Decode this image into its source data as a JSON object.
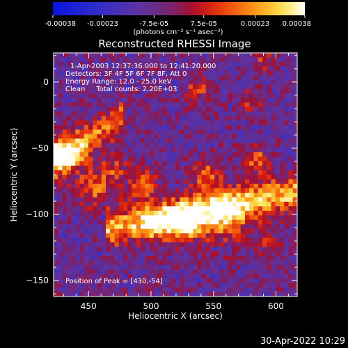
{
  "chart_data": {
    "type": "heatmap",
    "title": "Reconstructed RHESSI Image",
    "xlabel": "Heliocentric X (arcsec)",
    "ylabel": "Heliocentric Y (arcsec)",
    "xlim": [
      422,
      617
    ],
    "ylim": [
      -162,
      22
    ],
    "x_ticks": [
      450,
      500,
      550,
      600
    ],
    "y_ticks": [
      0,
      -50,
      -100,
      -150
    ],
    "colorbar": {
      "range": [
        -0.00038,
        0.00038
      ],
      "tick_values": [
        -0.00038,
        -0.00023,
        -7.5e-05,
        7.5e-05,
        0.00023,
        0.00038
      ],
      "tick_labels": [
        "-0.00038",
        "-0.00023",
        "-7.5e-05",
        "7.5e-05",
        "0.00023",
        "0.00038"
      ],
      "units_label": "(photons cm⁻² s⁻¹ asec⁻²)"
    },
    "annotations": [
      "1-Apr-2003 12:37:36.000 to 12:41:20.000",
      "Detectors: 3F 4F 5F 6F 7F 8F, Att 0",
      "Energy Range: 12.0 - 25.0 keV",
      "Clean     Total counts: 2.20E+03"
    ],
    "peak_label": "Position of Peak = [430,-54]",
    "peak": [
      430,
      -54
    ],
    "ridges": [
      {
        "y0": -97,
        "slope": 0.18,
        "width": 9,
        "amp": 0.00034,
        "x_start": 470,
        "x_end": 617
      },
      {
        "y0": -48,
        "slope": 0.6,
        "width": 9,
        "amp": 0.00026,
        "x_start": 415,
        "x_end": 470
      }
    ],
    "blobs": [
      {
        "x": 430,
        "y": -54,
        "sigma": 11,
        "amp": 0.00032
      },
      {
        "x": 455,
        "y": -80,
        "sigma": 10,
        "amp": 0.00022
      },
      {
        "x": 527,
        "y": -107,
        "sigma": 11,
        "amp": 0.00032
      },
      {
        "x": 560,
        "y": -102,
        "sigma": 13,
        "amp": 0.00026
      },
      {
        "x": 545,
        "y": -72,
        "sigma": 9,
        "amp": 0.00024
      },
      {
        "x": 585,
        "y": -60,
        "sigma": 8,
        "amp": 0.00022
      },
      {
        "x": 493,
        "y": -78,
        "sigma": 9,
        "amp": 0.00022
      },
      {
        "x": 503,
        "y": -107,
        "sigma": 8,
        "amp": 0.00024
      },
      {
        "x": 595,
        "y": -122,
        "sigma": 7,
        "amp": 0.00016
      },
      {
        "x": 538,
        "y": -5,
        "sigma": 7,
        "amp": 0.0002
      },
      {
        "x": 590,
        "y": 15,
        "sigma": 6,
        "amp": 0.00016
      },
      {
        "x": 470,
        "y": -65,
        "sigma": 7,
        "amp": 0.00016
      },
      {
        "x": 580,
        "y": -15,
        "sigma": 7,
        "amp": 0.00013
      }
    ],
    "background": -8e-05,
    "noise": 0.00011,
    "grid_nx": 56,
    "grid_ny": 54
  },
  "timestamp": "30-Apr-2022 10:29"
}
